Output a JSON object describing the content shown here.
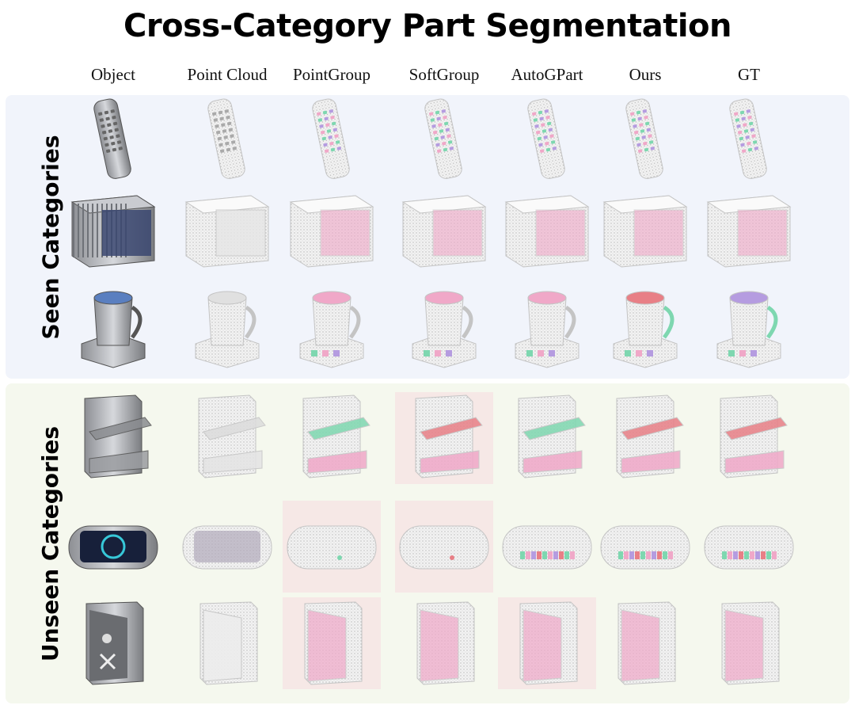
{
  "figure": {
    "title": "Cross-Category Part Segmentation",
    "columns": [
      "Object",
      "Point Cloud",
      "PointGroup",
      "SoftGroup",
      "AutoGPart",
      "Ours",
      "GT"
    ],
    "groups": [
      {
        "label": "Seen Categories",
        "rows": [
          {
            "object": "remote",
            "highlight": [
              false,
              false,
              false,
              false,
              false,
              false,
              false
            ]
          },
          {
            "object": "box",
            "highlight": [
              false,
              false,
              false,
              false,
              false,
              false,
              false
            ]
          },
          {
            "object": "kettle",
            "highlight": [
              false,
              false,
              false,
              false,
              false,
              false,
              false
            ]
          }
        ]
      },
      {
        "label": "Unseen Categories",
        "rows": [
          {
            "object": "cabinet",
            "highlight": [
              false,
              false,
              false,
              true,
              false,
              false,
              false
            ]
          },
          {
            "object": "panel",
            "highlight": [
              false,
              false,
              true,
              true,
              false,
              false,
              false
            ]
          },
          {
            "object": "safe",
            "highlight": [
              false,
              false,
              true,
              false,
              true,
              false,
              false
            ]
          }
        ]
      }
    ]
  },
  "colors": {
    "seen_panel": "#f1f4fb",
    "unseen_panel": "#f5f8ee",
    "failure_highlight": "#f6e8e6",
    "segment_pink": "#f0a8c8",
    "segment_green": "#7ed7b0",
    "segment_purple": "#b59ce0",
    "segment_red": "#e87f86"
  }
}
